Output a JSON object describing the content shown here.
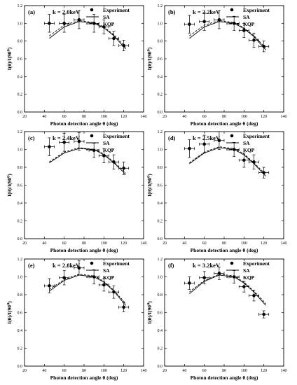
{
  "chart_data": [
    {
      "type": "scatter",
      "panel_label": "(a)",
      "annotation": "k = 2.0keV",
      "xlabel": "Photon detection angle θ (deg)",
      "ylabel": "I(θ)/I(90⁰)",
      "xlim": [
        20,
        140
      ],
      "ylim": [
        0.0,
        1.2
      ],
      "xticks": [
        "20",
        "40",
        "60",
        "80",
        "100",
        "120",
        "140"
      ],
      "yticks": [
        "0.0",
        "0.2",
        "0.4",
        "0.6",
        "0.8",
        "1.0",
        "1.2"
      ],
      "legend": [
        "Experiment",
        "SA",
        "KQP"
      ],
      "legend_position": "top-right",
      "experiment": {
        "name": "Experiment",
        "x": [
          45,
          60,
          75,
          90,
          100,
          110,
          120
        ],
        "y": [
          1.0,
          1.0,
          1.04,
          1.0,
          0.96,
          0.83,
          0.75
        ],
        "yerr": [
          0.1,
          0.1,
          0.1,
          0.1,
          0.08,
          0.08,
          0.06
        ],
        "xerr": [
          5,
          5,
          5,
          5,
          5,
          5,
          5
        ]
      },
      "curves": [
        {
          "name": "SA",
          "style": "solid",
          "x": [
            45,
            60,
            75,
            90,
            100,
            110,
            122
          ],
          "y": [
            0.83,
            0.96,
            1.02,
            1.0,
            0.95,
            0.86,
            0.71
          ]
        },
        {
          "name": "KQP",
          "style": "dashed",
          "x": [
            45,
            60,
            75,
            90,
            100,
            110,
            122
          ],
          "y": [
            0.86,
            0.98,
            1.03,
            1.01,
            0.96,
            0.87,
            0.73
          ]
        }
      ]
    },
    {
      "type": "scatter",
      "panel_label": "(b)",
      "annotation": "k = 2.2keV",
      "xlabel": "Photon detection angle θ (deg)",
      "ylabel": "I(θ)/I(90⁰)",
      "xlim": [
        20,
        140
      ],
      "ylim": [
        0.0,
        1.2
      ],
      "xticks": [
        "20",
        "40",
        "60",
        "80",
        "100",
        "120",
        "140"
      ],
      "yticks": [
        "0.0",
        "0.2",
        "0.4",
        "0.6",
        "0.8",
        "1.0",
        "1.2"
      ],
      "legend": [
        "Experiment",
        "SA",
        "KQP"
      ],
      "legend_position": "top-right",
      "experiment": {
        "name": "Experiment",
        "x": [
          45,
          60,
          75,
          90,
          100,
          110,
          120
        ],
        "y": [
          0.99,
          1.02,
          1.04,
          1.0,
          0.92,
          0.81,
          0.74
        ],
        "yerr": [
          0.1,
          0.1,
          0.1,
          0.08,
          0.08,
          0.08,
          0.06
        ],
        "xerr": [
          5,
          5,
          5,
          5,
          5,
          5,
          5
        ]
      },
      "curves": [
        {
          "name": "SA",
          "style": "solid",
          "x": [
            45,
            60,
            75,
            90,
            100,
            110,
            122
          ],
          "y": [
            0.83,
            0.96,
            1.02,
            1.0,
            0.94,
            0.85,
            0.7
          ]
        },
        {
          "name": "KQP",
          "style": "dashed",
          "x": [
            45,
            60,
            75,
            90,
            100,
            110,
            122
          ],
          "y": [
            0.86,
            0.98,
            1.03,
            1.01,
            0.95,
            0.86,
            0.72
          ]
        }
      ]
    },
    {
      "type": "scatter",
      "panel_label": "(c)",
      "annotation": "k = 2.4keV",
      "xlabel": "Photon detection angle θ (deg)",
      "ylabel": "I(θ)/I(90⁰)",
      "xlim": [
        20,
        140
      ],
      "ylim": [
        0.0,
        1.2
      ],
      "xticks": [
        "20",
        "40",
        "60",
        "80",
        "100",
        "120",
        "140"
      ],
      "yticks": [
        "0.0",
        "0.2",
        "0.4",
        "0.6",
        "0.8",
        "1.0",
        "1.2"
      ],
      "legend": [
        "Experiment",
        "SA",
        "KQP"
      ],
      "legend_position": "top-right",
      "experiment": {
        "name": "Experiment",
        "x": [
          45,
          60,
          75,
          90,
          100,
          110,
          120
        ],
        "y": [
          1.03,
          1.08,
          1.09,
          0.99,
          0.93,
          0.86,
          0.79
        ],
        "yerr": [
          0.1,
          0.1,
          0.1,
          0.08,
          0.08,
          0.08,
          0.07
        ],
        "xerr": [
          5,
          5,
          5,
          5,
          5,
          5,
          5
        ]
      },
      "curves": [
        {
          "name": "SA",
          "style": "solid",
          "x": [
            45,
            60,
            75,
            90,
            100,
            110,
            122
          ],
          "y": [
            0.85,
            0.96,
            1.01,
            1.0,
            0.94,
            0.85,
            0.72
          ]
        },
        {
          "name": "KQP",
          "style": "dashed",
          "x": [
            45,
            60,
            75,
            90,
            100,
            110,
            122
          ],
          "y": [
            0.86,
            0.97,
            1.02,
            1.0,
            0.95,
            0.86,
            0.74
          ]
        }
      ]
    },
    {
      "type": "scatter",
      "panel_label": "(d)",
      "annotation": "k = 2.5keV",
      "xlabel": "Photon detection angle θ (deg)",
      "ylabel": "I(θ)/I(90⁰)",
      "xlim": [
        20,
        140
      ],
      "ylim": [
        0.0,
        1.2
      ],
      "xticks": [
        "20",
        "40",
        "60",
        "80",
        "100",
        "120",
        "140"
      ],
      "yticks": [
        "0.0",
        "0.2",
        "0.4",
        "0.6",
        "0.8",
        "1.0",
        "1.2"
      ],
      "legend": [
        "Experiment",
        "SA",
        "KQP"
      ],
      "legend_position": "top-right",
      "experiment": {
        "name": "Experiment",
        "x": [
          45,
          60,
          75,
          90,
          100,
          110,
          120
        ],
        "y": [
          1.01,
          1.06,
          1.1,
          1.0,
          0.88,
          0.86,
          0.74
        ],
        "yerr": [
          0.1,
          0.1,
          0.1,
          0.08,
          0.08,
          0.08,
          0.06
        ],
        "xerr": [
          5,
          5,
          5,
          5,
          5,
          5,
          5
        ]
      },
      "curves": [
        {
          "name": "SA",
          "style": "solid",
          "x": [
            45,
            60,
            75,
            90,
            100,
            110,
            122
          ],
          "y": [
            0.84,
            0.96,
            1.02,
            1.0,
            0.94,
            0.84,
            0.7
          ]
        },
        {
          "name": "KQP",
          "style": "dashed",
          "x": [
            45,
            60,
            75,
            90,
            100,
            110,
            122
          ],
          "y": [
            0.85,
            0.97,
            1.03,
            1.01,
            0.95,
            0.85,
            0.72
          ]
        }
      ]
    },
    {
      "type": "scatter",
      "panel_label": "(e)",
      "annotation": "k = 2.8keV",
      "xlabel": "Photon detection angle θ (deg)",
      "ylabel": "I(θ)/I(90⁰)",
      "xlim": [
        20,
        140
      ],
      "ylim": [
        0.0,
        1.2
      ],
      "xticks": [
        "20",
        "40",
        "60",
        "80",
        "100",
        "120",
        "140"
      ],
      "yticks": [
        "0.0",
        "0.2",
        "0.4",
        "0.6",
        "0.8",
        "1.0",
        "1.2"
      ],
      "legend": [
        "Experiment",
        "SA",
        "KQP"
      ],
      "legend_position": "top-right",
      "experiment": {
        "name": "Experiment",
        "x": [
          45,
          60,
          75,
          90,
          100,
          110,
          120
        ],
        "y": [
          0.9,
          0.99,
          1.1,
          1.0,
          0.91,
          0.83,
          0.66
        ],
        "yerr": [
          0.08,
          0.08,
          0.08,
          0.08,
          0.07,
          0.07,
          0.05
        ],
        "xerr": [
          5,
          5,
          5,
          5,
          5,
          5,
          5
        ]
      },
      "curves": [
        {
          "name": "SA",
          "style": "solid",
          "x": [
            45,
            60,
            75,
            90,
            100,
            110,
            122
          ],
          "y": [
            0.84,
            0.96,
            1.02,
            1.0,
            0.94,
            0.84,
            0.68
          ]
        },
        {
          "name": "KQP",
          "style": "dashed",
          "x": [
            45,
            60,
            75,
            90,
            100,
            110,
            122
          ],
          "y": [
            0.86,
            0.97,
            1.03,
            1.01,
            0.95,
            0.85,
            0.7
          ]
        }
      ]
    },
    {
      "type": "scatter",
      "panel_label": "(f)",
      "annotation": "k = 3.2keV",
      "xlabel": "Photon detection angle θ (deg)",
      "ylabel": "I(θ)/I(90⁰)",
      "xlim": [
        20,
        140
      ],
      "ylim": [
        0.0,
        1.2
      ],
      "xticks": [
        "20",
        "40",
        "60",
        "80",
        "100",
        "120",
        "140"
      ],
      "yticks": [
        "0.0",
        "0.2",
        "0.4",
        "0.6",
        "0.8",
        "1.0",
        "1.2"
      ],
      "legend": [
        "Experiment",
        "SA",
        "KQP"
      ],
      "legend_position": "top-right",
      "experiment": {
        "name": "Experiment",
        "x": [
          45,
          60,
          75,
          90,
          100,
          110,
          120
        ],
        "y": [
          0.93,
          0.99,
          1.04,
          1.0,
          0.89,
          0.79,
          0.58
        ],
        "yerr": [
          0.07,
          0.07,
          0.07,
          0.07,
          0.06,
          0.06,
          0.04
        ],
        "xerr": [
          5,
          5,
          5,
          5,
          5,
          5,
          5
        ]
      },
      "curves": [
        {
          "name": "SA",
          "style": "solid",
          "x": [
            45,
            60,
            75,
            90,
            100,
            110,
            122
          ],
          "y": [
            0.81,
            0.95,
            1.02,
            1.0,
            0.93,
            0.83,
            0.68
          ]
        },
        {
          "name": "KQP",
          "style": "dashed",
          "x": [
            45,
            60,
            75,
            90,
            100,
            110,
            122
          ],
          "y": [
            0.83,
            0.96,
            1.03,
            1.01,
            0.94,
            0.84,
            0.7
          ]
        }
      ]
    }
  ]
}
